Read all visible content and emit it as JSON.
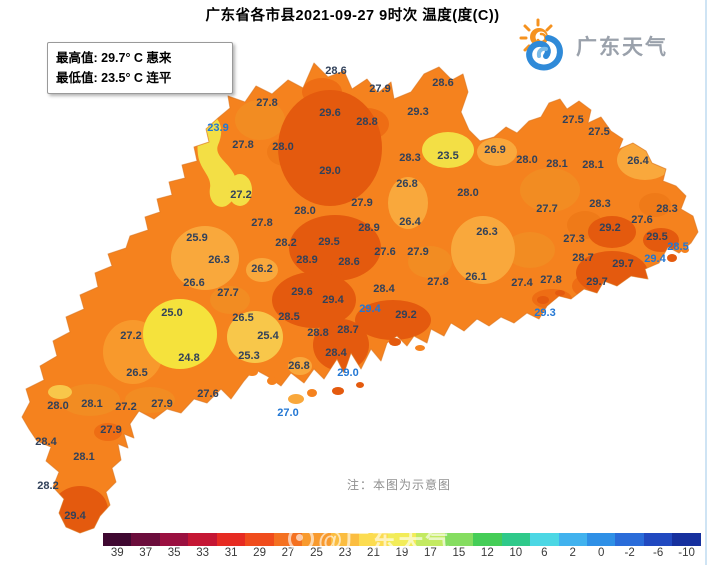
{
  "title": "广东省各市县2021-09-27 9时次 温度(度(C))",
  "extremes": {
    "max_line": "最高值: 29.7° C 惠来",
    "min_line": "最低值: 23.5° C 连平"
  },
  "logo": {
    "text": "广东天气"
  },
  "note": "注：本图为示意图",
  "watermark": "@广东天气",
  "chart_data": {
    "type": "heatmap",
    "title": "广东省各市县2021-09-27 9时次 温度(度(C))",
    "unit": "度(C)",
    "max": {
      "value": 29.7,
      "place": "惠来"
    },
    "min": {
      "value": 23.5,
      "place": "连平"
    },
    "stations": [
      [
        "28.6",
        336,
        71
      ],
      [
        "27.9",
        380,
        89
      ],
      [
        "28.6",
        443,
        83
      ],
      [
        "27.8",
        267,
        103
      ],
      [
        "29.6",
        330,
        113
      ],
      [
        "28.8",
        367,
        122
      ],
      [
        "29.3",
        418,
        112
      ],
      [
        "27.5",
        573,
        120
      ],
      [
        "27.5",
        599,
        132
      ],
      [
        "23.9",
        218,
        128,
        1
      ],
      [
        "27.8",
        243,
        145
      ],
      [
        "28.0",
        283,
        147
      ],
      [
        "28.3",
        410,
        158
      ],
      [
        "23.5",
        448,
        156
      ],
      [
        "26.9",
        495,
        150
      ],
      [
        "28.0",
        527,
        160
      ],
      [
        "28.1",
        557,
        164
      ],
      [
        "28.1",
        593,
        165
      ],
      [
        "26.4",
        638,
        161
      ],
      [
        "29.0",
        330,
        171
      ],
      [
        "26.8",
        407,
        184
      ],
      [
        "28.0",
        468,
        193
      ],
      [
        "27.2",
        241,
        195
      ],
      [
        "27.9",
        362,
        203
      ],
      [
        "28.0",
        305,
        211
      ],
      [
        "28.3",
        600,
        204
      ],
      [
        "27.7",
        547,
        209
      ],
      [
        "28.3",
        667,
        209
      ],
      [
        "27.6",
        642,
        220
      ],
      [
        "26.4",
        410,
        222
      ],
      [
        "27.8",
        262,
        223
      ],
      [
        "28.9",
        369,
        228
      ],
      [
        "29.2",
        610,
        228
      ],
      [
        "26.3",
        487,
        232
      ],
      [
        "29.5",
        657,
        237
      ],
      [
        "25.9",
        197,
        238
      ],
      [
        "27.3",
        574,
        239
      ],
      [
        "28.2",
        286,
        243
      ],
      [
        "29.5",
        329,
        242
      ],
      [
        "28.5",
        678,
        247,
        1
      ],
      [
        "27.6",
        385,
        252
      ],
      [
        "27.9",
        418,
        252
      ],
      [
        "28.9",
        307,
        260
      ],
      [
        "26.3",
        219,
        260
      ],
      [
        "28.6",
        349,
        262
      ],
      [
        "29.4",
        655,
        259,
        1
      ],
      [
        "28.7",
        583,
        258
      ],
      [
        "29.7",
        623,
        264
      ],
      [
        "26.2",
        262,
        269
      ],
      [
        "26.1",
        476,
        277
      ],
      [
        "27.8",
        438,
        282
      ],
      [
        "27.4",
        522,
        283
      ],
      [
        "27.8",
        551,
        280
      ],
      [
        "29.7",
        597,
        282
      ],
      [
        "26.6",
        194,
        283
      ],
      [
        "28.4",
        384,
        289
      ],
      [
        "27.7",
        228,
        293
      ],
      [
        "29.6",
        302,
        292
      ],
      [
        "29.4",
        333,
        300
      ],
      [
        "25.0",
        172,
        313
      ],
      [
        "29.4",
        370,
        309,
        1
      ],
      [
        "29.2",
        406,
        315
      ],
      [
        "29.3",
        545,
        313,
        1
      ],
      [
        "26.5",
        243,
        318
      ],
      [
        "28.5",
        289,
        317
      ],
      [
        "27.2",
        131,
        336
      ],
      [
        "25.4",
        268,
        336
      ],
      [
        "28.8",
        318,
        333
      ],
      [
        "28.7",
        348,
        330
      ],
      [
        "28.4",
        336,
        353
      ],
      [
        "25.3",
        249,
        356
      ],
      [
        "24.8",
        189,
        358
      ],
      [
        "26.8",
        299,
        366
      ],
      [
        "29.0",
        348,
        373,
        1
      ],
      [
        "26.5",
        137,
        373
      ],
      [
        "27.6",
        208,
        394
      ],
      [
        "28.0",
        58,
        406
      ],
      [
        "28.1",
        92,
        404
      ],
      [
        "27.2",
        126,
        407
      ],
      [
        "27.9",
        162,
        404
      ],
      [
        "27.0",
        288,
        413,
        1
      ],
      [
        "27.9",
        111,
        430
      ],
      [
        "28.4",
        46,
        442
      ],
      [
        "28.1",
        84,
        457
      ],
      [
        "28.2",
        48,
        486
      ],
      [
        "29.4",
        75,
        516
      ]
    ]
  },
  "colorbar": {
    "ticks": [
      "39",
      "37",
      "35",
      "33",
      "31",
      "29",
      "27",
      "25",
      "23",
      "21",
      "19",
      "17",
      "15",
      "12",
      "10",
      "6",
      "2",
      "0",
      "-2",
      "-6",
      "-10"
    ],
    "colors": [
      "#3f0831",
      "#6b0d3c",
      "#9a1040",
      "#c41634",
      "#e62b22",
      "#f04c1c",
      "#f47121",
      "#f89a2e",
      "#fbbd40",
      "#fcdc50",
      "#f2ec58",
      "#c3ea61",
      "#85dd60",
      "#45cd57",
      "#2fc98a",
      "#4cd7e4",
      "#41b2ee",
      "#2f90e6",
      "#2a6cd9",
      "#2149c0",
      "#16309e"
    ]
  },
  "map_colors": {
    "base": "#f5821e",
    "hot": "#e45a0e",
    "warm": "#ee6d14",
    "mild": "#f9a83c",
    "cool": "#f8c74a",
    "cold": "#f3df45"
  }
}
